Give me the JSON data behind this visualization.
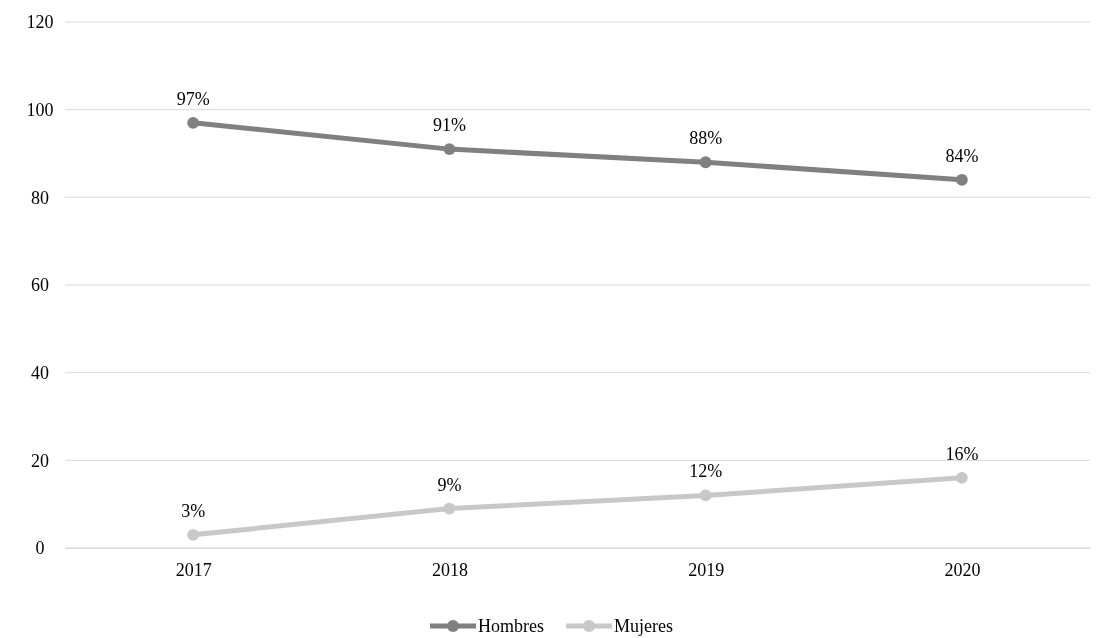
{
  "chart_data": {
    "type": "line",
    "categories": [
      "2017",
      "2018",
      "2019",
      "2020"
    ],
    "series": [
      {
        "name": "Hombres",
        "color": "#808080",
        "values": [
          97,
          91,
          88,
          84
        ],
        "value_labels": [
          "97%",
          "91%",
          "88%",
          "84%"
        ]
      },
      {
        "name": "Mujeres",
        "color": "#c8c8c8",
        "values": [
          3,
          9,
          12,
          16
        ],
        "value_labels": [
          "3%",
          "9%",
          "12%",
          "16%"
        ]
      }
    ],
    "ylim": [
      0,
      120
    ],
    "yticks": [
      0,
      20,
      40,
      60,
      80,
      100,
      120
    ],
    "grid": "y",
    "legend": "bottom",
    "marker": "circle",
    "line_style": "solid"
  }
}
